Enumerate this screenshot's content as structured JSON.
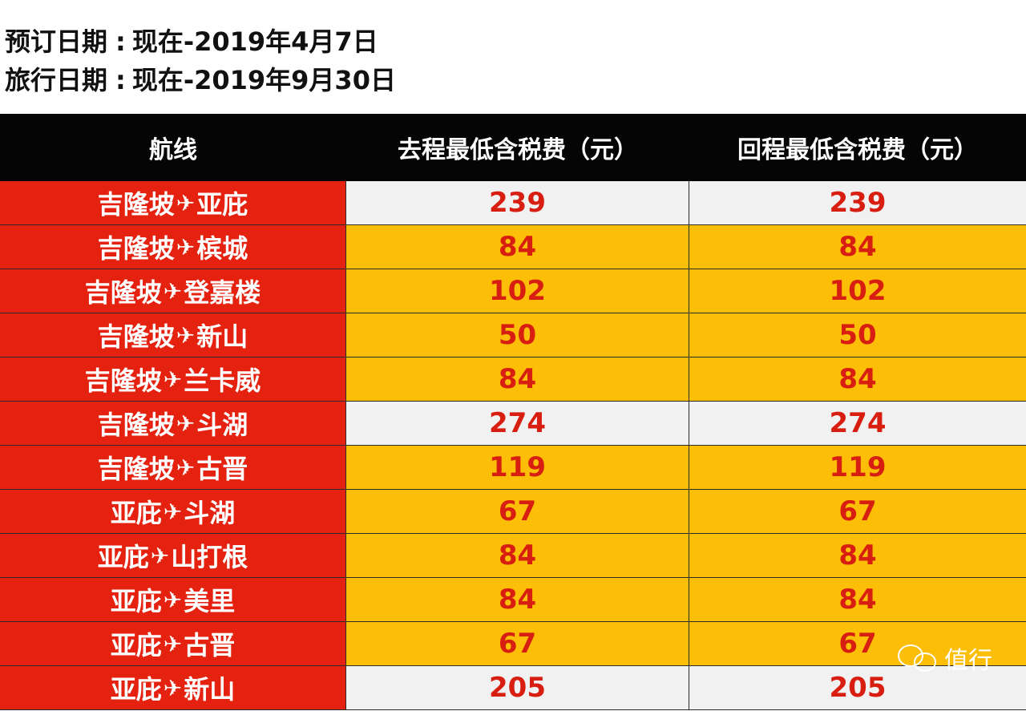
{
  "info": {
    "booking_label": "预订日期",
    "booking_value": "现在-2019年4月7日",
    "travel_label": "旅行日期",
    "travel_value": "现在-2019年9月30日",
    "separator": ":"
  },
  "table": {
    "headers": [
      "航线",
      "去程最低含税费（元）",
      "回程最低含税费（元）"
    ],
    "plane_glyph": "✈",
    "rows": [
      {
        "from": "吉隆坡",
        "to": "亚庇",
        "out": "239",
        "ret": "239",
        "style": "light"
      },
      {
        "from": "吉隆坡",
        "to": "槟城",
        "out": "84",
        "ret": "84",
        "style": "gold"
      },
      {
        "from": "吉隆坡",
        "to": "登嘉楼",
        "out": "102",
        "ret": "102",
        "style": "gold"
      },
      {
        "from": "吉隆坡",
        "to": "新山",
        "out": "50",
        "ret": "50",
        "style": "gold"
      },
      {
        "from": "吉隆坡",
        "to": "兰卡威",
        "out": "84",
        "ret": "84",
        "style": "gold"
      },
      {
        "from": "吉隆坡",
        "to": "斗湖",
        "out": "274",
        "ret": "274",
        "style": "light"
      },
      {
        "from": "吉隆坡",
        "to": "古晋",
        "out": "119",
        "ret": "119",
        "style": "gold"
      },
      {
        "from": "亚庇",
        "to": "斗湖",
        "out": "67",
        "ret": "67",
        "style": "gold"
      },
      {
        "from": "亚庇",
        "to": "山打根",
        "out": "84",
        "ret": "84",
        "style": "gold"
      },
      {
        "from": "亚庇",
        "to": "美里",
        "out": "84",
        "ret": "84",
        "style": "gold"
      },
      {
        "from": "亚庇",
        "to": "古晋",
        "out": "67",
        "ret": "67",
        "style": "gold"
      },
      {
        "from": "亚庇",
        "to": "新山",
        "out": "205",
        "ret": "205",
        "style": "light"
      }
    ]
  },
  "watermark": {
    "text": "值行",
    "icon": "wechat-icon"
  },
  "colors": {
    "header_bg": "#050505",
    "route_bg": "#e4220f",
    "price_text": "#d81e10",
    "light_row": "#f1f1f1",
    "gold_row": "#fcbe06"
  }
}
